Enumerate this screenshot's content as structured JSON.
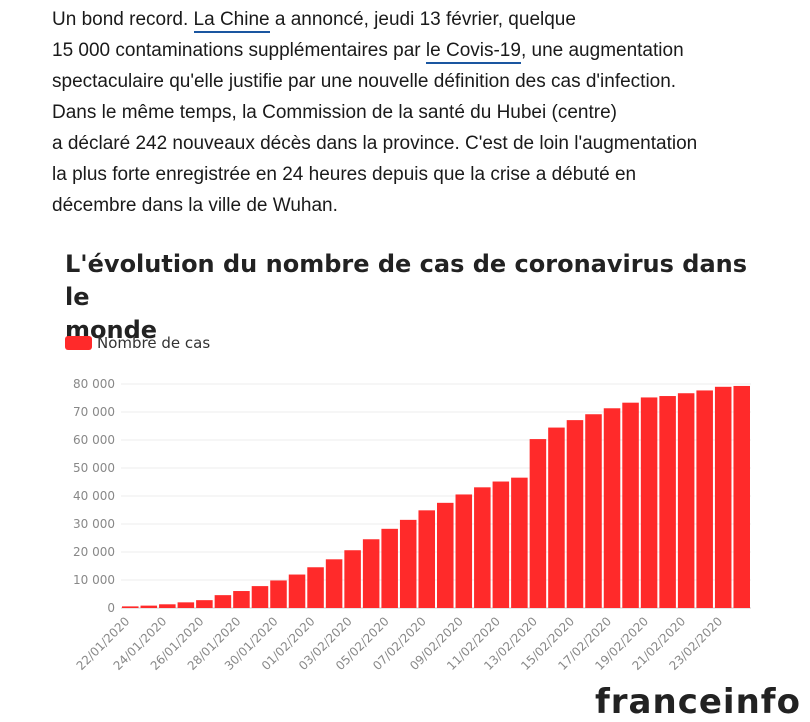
{
  "article": {
    "line1_pre": "Un bond record. ",
    "link_china": "La Chine",
    "line1_post": " a annoncé, jeudi 13 février, quelque",
    "line2_pre": "15 000 contaminations supplémentaires par ",
    "link_covid": "le Covis-19",
    "line2_post": ", une augmentation",
    "line3": "spectaculaire qu'elle justifie par une nouvelle définition des cas d'infection.",
    "line4": "Dans le même temps, la Commission de la santé du Hubei (centre)",
    "line5": "a déclaré 242 nouveaux décès dans la province. C'est de loin l'augmentation",
    "line6": "la plus forte enregistrée en 24 heures depuis que la crise a débuté en",
    "line7": "décembre dans la ville de Wuhan."
  },
  "chart_data": {
    "type": "bar",
    "title_line1": "L'évolution du nombre de cas de coronavirus dans le",
    "title_line2": "monde",
    "series": [
      {
        "name": "Nombre de cas",
        "color": "#ff2a2a",
        "values": [
          580,
          850,
          1320,
          2020,
          2800,
          4590,
          6060,
          7820,
          9830,
          11950,
          14550,
          17390,
          20630,
          24550,
          28280,
          31480,
          34880,
          37560,
          40550,
          43100,
          45170,
          46550,
          60330,
          64440,
          67100,
          69200,
          71330,
          73330,
          75200,
          75700,
          76700,
          77700,
          79000,
          79300
        ]
      }
    ],
    "x_tick_labels": [
      "22/01/2020",
      "24/01/2020",
      "26/01/2020",
      "28/01/2020",
      "30/01/2020",
      "01/02/2020",
      "03/02/2020",
      "05/02/2020",
      "07/02/2020",
      "09/02/2020",
      "11/02/2020",
      "13/02/2020",
      "15/02/2020",
      "17/02/2020",
      "19/02/2020",
      "21/02/2020",
      "23/02/2020"
    ],
    "y_ticks": [
      0,
      10000,
      20000,
      30000,
      40000,
      50000,
      60000,
      70000,
      80000
    ],
    "y_tick_labels": [
      "0",
      "10 000",
      "20 000",
      "30 000",
      "40 000",
      "50 000",
      "60 000",
      "70 000",
      "80 000"
    ],
    "ylim": [
      0,
      80000
    ],
    "grid": true,
    "legend_position": "top-left"
  },
  "footer_fragment": "franceinfo"
}
